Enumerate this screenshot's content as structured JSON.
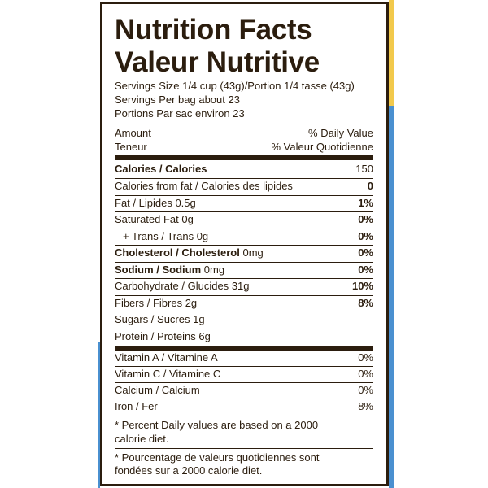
{
  "header": {
    "title": "Nutrition Facts",
    "title_fr": "Valeur Nutritive",
    "serving_lines": [
      "Servings Size 1/4 cup (43g)/Portion 1/4 tasse (43g)",
      "Servings Per bag about 23",
      "Portions Par sac environ 23"
    ]
  },
  "columns": {
    "amount": "Amount",
    "amount_fr": "Teneur",
    "daily_value": "% Daily Value",
    "daily_value_fr": "% Valeur Quotidienne"
  },
  "rows": [
    {
      "name": "Calories / Calories",
      "value": "150"
    },
    {
      "name": "Calories from fat / Calories des lipides",
      "value": "0"
    },
    {
      "name": "Fat / Lipides",
      "amount": "0.5g",
      "value": "1%"
    },
    {
      "name": "Saturated Fat",
      "amount": "0g",
      "value": "0%"
    },
    {
      "name": "+ Trans / Trans",
      "amount": "0g",
      "value": "0%"
    },
    {
      "name": "Cholesterol / Cholesterol",
      "amount": "0mg",
      "value": "0%"
    },
    {
      "name": "Sodium / Sodium",
      "amount": "0mg",
      "value": "0%"
    },
    {
      "name": "Carbohydrate / Glucides",
      "amount": "31g",
      "value": "10%"
    },
    {
      "name": "Fibers / Fibres",
      "amount": "2g",
      "value": "8%"
    },
    {
      "name": "Sugars / Sucres",
      "amount": "1g"
    },
    {
      "name": "Protein / Proteins",
      "amount": "6g"
    }
  ],
  "vitamins": [
    {
      "name": "Vitamin A / Vitamine A",
      "value": "0%"
    },
    {
      "name": "Vitamin C / Vitamine C",
      "value": "0%"
    },
    {
      "name": "Calcium / Calcium",
      "value": "0%"
    },
    {
      "name": "Iron / Fer",
      "value": "8%"
    }
  ],
  "footnotes": [
    [
      "* Percent Daily values are based on a 2000",
      "calorie diet."
    ],
    [
      "* Pourcentage de valeurs quotidiennes sont",
      "fondées sur a 2000 calorie diet."
    ]
  ]
}
